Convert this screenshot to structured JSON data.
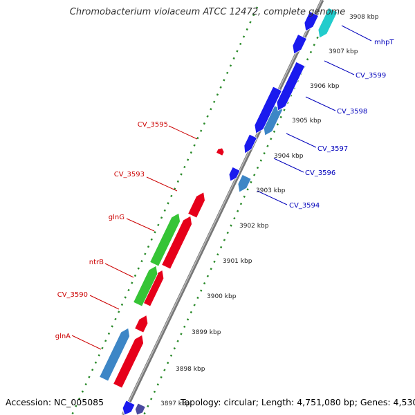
{
  "title": "Chromobacterium violaceum ATCC 12472, complete genome",
  "footer": {
    "accession": "Accession: NC_005085",
    "topology": "Topology: circular; Length: 4,751,080 bp; Genes: 4,530"
  },
  "colors": {
    "forward_gene": "#e6001a",
    "reverse_gene": "#1a1aee",
    "rna_gene": "#3d86c6",
    "glnG_gene": "#36c436",
    "mhpT_gene": "#22cccc",
    "backbone": "#8a8a8a",
    "ticks": "#2a8a2a",
    "forward_label": "#cc0000",
    "reverse_label": "#0000bb"
  },
  "scale_labels": [
    "3897 kbp",
    "3898 kbp",
    "3899 kbp",
    "3900 kbp",
    "3901 kbp",
    "3902 kbp",
    "3903 kbp",
    "3904 kbp",
    "3905 kbp",
    "3906 kbp",
    "3907 kbp",
    "3908 kbp"
  ],
  "forward_labels": [
    "CV_3595",
    "CV_3593",
    "glnG",
    "ntrB",
    "CV_3590",
    "glnA"
  ],
  "reverse_labels": [
    "mhpT",
    "CV_3599",
    "CV_3598",
    "CV_3597",
    "CV_3596",
    "CV_3594"
  ]
}
